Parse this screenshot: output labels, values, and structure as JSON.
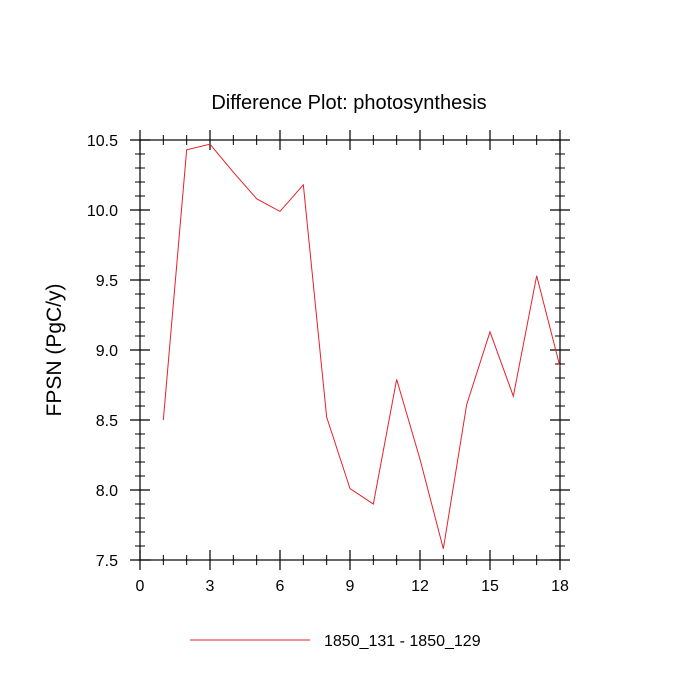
{
  "chart_data": {
    "type": "line",
    "title": "Difference Plot: photosynthesis",
    "xlabel": "",
    "ylabel": "FPSN  (PgC/y)",
    "xlim": [
      0,
      18
    ],
    "ylim": [
      7.5,
      10.5
    ],
    "xticks": [
      0,
      3,
      6,
      9,
      12,
      15,
      18
    ],
    "xtick_labels": [
      "0",
      "3",
      "6",
      "9",
      "12",
      "15",
      "18"
    ],
    "yticks": [
      7.5,
      8.0,
      8.5,
      9.0,
      9.5,
      10.0,
      10.5
    ],
    "ytick_labels": [
      "7.5",
      "8.0",
      "8.5",
      "9.0",
      "9.5",
      "10.0",
      "10.5"
    ],
    "grid": false,
    "legend_position": "bottom-center",
    "series": [
      {
        "name": "1850_131 - 1850_129",
        "color": "#e8202a",
        "x": [
          1,
          2,
          3,
          4,
          5,
          6,
          7,
          8,
          9,
          10,
          11,
          12,
          13,
          14,
          15,
          16,
          17,
          18
        ],
        "y": [
          8.5,
          10.43,
          10.47,
          10.27,
          10.08,
          9.99,
          10.18,
          8.52,
          8.01,
          7.9,
          8.79,
          8.22,
          7.58,
          8.61,
          9.13,
          8.67,
          9.53,
          8.88
        ]
      }
    ]
  }
}
